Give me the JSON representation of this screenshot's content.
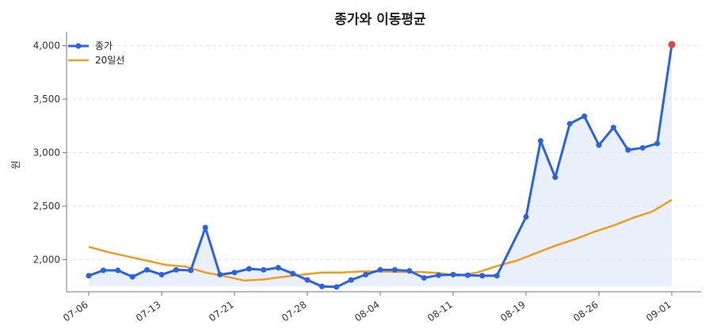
{
  "chart_data": {
    "type": "line",
    "title": "종가와 이동평균",
    "xlabel": "",
    "ylabel": "원",
    "ylim": [
      1700,
      4130
    ],
    "yticks": [
      2000,
      2500,
      3000,
      3500,
      4000
    ],
    "ytick_labels": [
      "2,000",
      "2,500",
      "3,000",
      "3,500",
      "4,000"
    ],
    "xtick_labels": [
      "07-06",
      "07-13",
      "07-21",
      "07-28",
      "08-04",
      "08-11",
      "08-19",
      "08-26",
      "09-01"
    ],
    "xtick_indices": [
      0,
      5,
      10,
      15,
      20,
      25,
      30,
      35,
      40
    ],
    "grid": "y-dashed",
    "legend_position": "top-left",
    "colors": {
      "close": "#2a62e0",
      "ma20": "#f29b1d",
      "fill": "#e3eafb",
      "last_point": "#e04545",
      "grid": "#e3e3e3",
      "axis": "#777777"
    },
    "series": [
      {
        "name": "종가",
        "values": [
          1850,
          1900,
          1900,
          1840,
          1905,
          1860,
          1905,
          1900,
          2300,
          1860,
          1880,
          1915,
          1905,
          1925,
          1870,
          1810,
          1750,
          1745,
          1810,
          1860,
          1905,
          1905,
          1895,
          1830,
          1855,
          1860,
          1855,
          1850,
          1850,
          2400,
          3110,
          2770,
          3270,
          3340,
          3070,
          3235,
          3025,
          3045,
          3085,
          4010
        ]
      },
      {
        "name": "20일선",
        "x_start_index": 0,
        "x_end_index": 40,
        "values": [
          2120,
          2070,
          2030,
          1990,
          1950,
          1935,
          1880,
          1845,
          1805,
          1815,
          1840,
          1860,
          1880,
          1880,
          1890,
          1890,
          1885,
          1885,
          1875,
          1850,
          1880,
          1940,
          1990,
          2060,
          2130,
          2190,
          2260,
          2320,
          2390,
          2450,
          2560
        ]
      }
    ]
  }
}
